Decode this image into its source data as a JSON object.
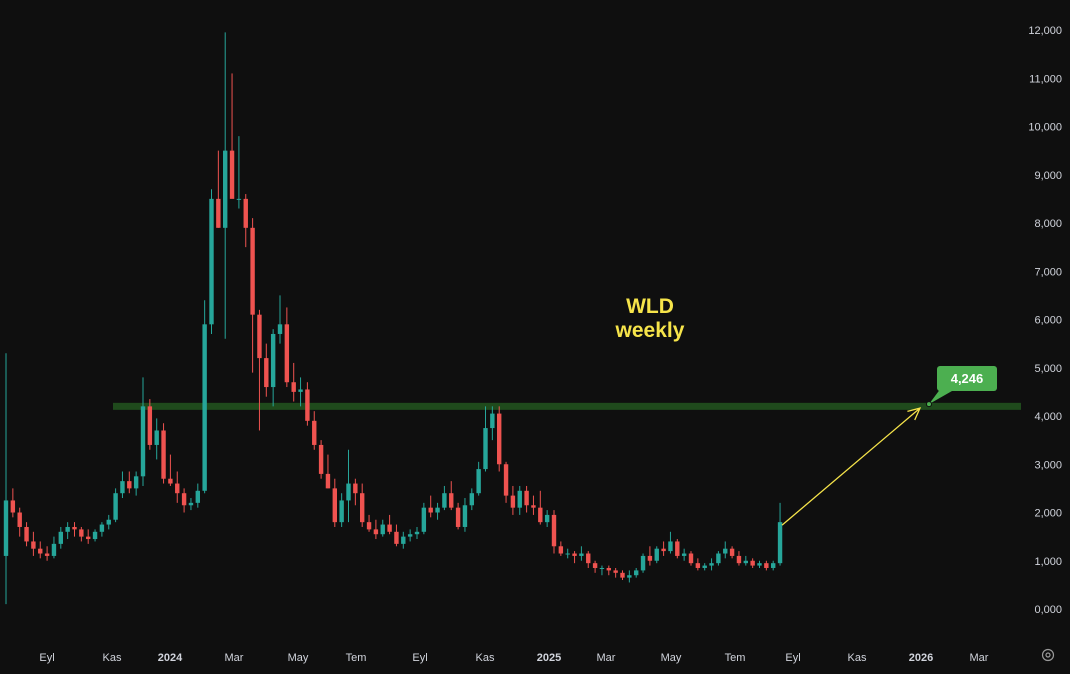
{
  "chart_data": {
    "type": "candlestick",
    "title": "WLD",
    "subtitle": "weekly",
    "ylim": [
      0,
      12000
    ],
    "y_ticks": [
      0,
      1000,
      2000,
      3000,
      4000,
      5000,
      6000,
      7000,
      8000,
      9000,
      10000,
      11000,
      12000
    ],
    "y_tick_labels": [
      "0,000",
      "1,000",
      "2,000",
      "3,000",
      "4,000",
      "5,000",
      "6,000",
      "7,000",
      "8,000",
      "9,000",
      "10,000",
      "11,000",
      "12,000"
    ],
    "x_tick_labels": [
      "Eyl",
      "Kas",
      "2024",
      "Mar",
      "May",
      "Tem",
      "Eyl",
      "Kas",
      "2025",
      "Mar",
      "May",
      "Tem",
      "Eyl",
      "Kas",
      "2026",
      "Mar"
    ],
    "bold_x_labels": [
      "2024",
      "2025",
      "2026"
    ],
    "candles": [
      [
        1100,
        5300,
        100,
        2250
      ],
      [
        2250,
        2500,
        1900,
        2000
      ],
      [
        2000,
        2100,
        1500,
        1700
      ],
      [
        1700,
        1800,
        1300,
        1400
      ],
      [
        1400,
        1600,
        1100,
        1250
      ],
      [
        1250,
        1400,
        1050,
        1150
      ],
      [
        1150,
        1300,
        1000,
        1100
      ],
      [
        1100,
        1500,
        1050,
        1350
      ],
      [
        1350,
        1700,
        1250,
        1600
      ],
      [
        1600,
        1800,
        1450,
        1700
      ],
      [
        1700,
        1800,
        1500,
        1650
      ],
      [
        1650,
        1700,
        1400,
        1500
      ],
      [
        1500,
        1650,
        1350,
        1450
      ],
      [
        1450,
        1650,
        1400,
        1600
      ],
      [
        1600,
        1800,
        1500,
        1750
      ],
      [
        1750,
        1950,
        1650,
        1850
      ],
      [
        1850,
        2500,
        1800,
        2400
      ],
      [
        2400,
        2850,
        2300,
        2650
      ],
      [
        2650,
        2850,
        2400,
        2500
      ],
      [
        2500,
        2850,
        2350,
        2750
      ],
      [
        2750,
        4800,
        2550,
        4200
      ],
      [
        4200,
        4350,
        3300,
        3400
      ],
      [
        3400,
        3950,
        3100,
        3700
      ],
      [
        3700,
        3850,
        2600,
        2700
      ],
      [
        2700,
        3200,
        2550,
        2600
      ],
      [
        2600,
        2850,
        2200,
        2400
      ],
      [
        2400,
        2500,
        2000,
        2150
      ],
      [
        2150,
        2300,
        2050,
        2200
      ],
      [
        2200,
        2600,
        2100,
        2450
      ],
      [
        2450,
        6400,
        2400,
        5900
      ],
      [
        5900,
        8700,
        5700,
        8500
      ],
      [
        8500,
        9500,
        7900,
        7900
      ],
      [
        7900,
        11950,
        5600,
        9500
      ],
      [
        9500,
        11100,
        8600,
        8500
      ],
      [
        8500,
        9800,
        8300,
        8500
      ],
      [
        8500,
        8600,
        7500,
        7900
      ],
      [
        7900,
        8100,
        4900,
        6100
      ],
      [
        6100,
        6200,
        3700,
        5200
      ],
      [
        5200,
        5500,
        4400,
        4600
      ],
      [
        4600,
        5800,
        4200,
        5700
      ],
      [
        5700,
        6500,
        5500,
        5900
      ],
      [
        5900,
        6250,
        4600,
        4700
      ],
      [
        4700,
        5100,
        4300,
        4500
      ],
      [
        4500,
        4800,
        4200,
        4550
      ],
      [
        4550,
        4700,
        3800,
        3900
      ],
      [
        3900,
        4100,
        3300,
        3400
      ],
      [
        3400,
        3500,
        2700,
        2800
      ],
      [
        2800,
        3200,
        2500,
        2500
      ],
      [
        2500,
        2700,
        1700,
        1800
      ],
      [
        1800,
        2400,
        1700,
        2250
      ],
      [
        2250,
        3300,
        1800,
        2600
      ],
      [
        2600,
        2700,
        2150,
        2400
      ],
      [
        2400,
        2600,
        1700,
        1800
      ],
      [
        1800,
        1950,
        1600,
        1650
      ],
      [
        1650,
        1850,
        1450,
        1550
      ],
      [
        1550,
        1850,
        1500,
        1750
      ],
      [
        1750,
        1950,
        1550,
        1600
      ],
      [
        1600,
        1750,
        1300,
        1350
      ],
      [
        1350,
        1600,
        1250,
        1500
      ],
      [
        1500,
        1650,
        1400,
        1550
      ],
      [
        1550,
        1700,
        1450,
        1600
      ],
      [
        1600,
        2200,
        1550,
        2100
      ],
      [
        2100,
        2350,
        1900,
        2000
      ],
      [
        2000,
        2200,
        1850,
        2100
      ],
      [
        2100,
        2550,
        2050,
        2400
      ],
      [
        2400,
        2650,
        2050,
        2100
      ],
      [
        2100,
        2200,
        1650,
        1700
      ],
      [
        1700,
        2300,
        1600,
        2150
      ],
      [
        2150,
        2500,
        2050,
        2400
      ],
      [
        2400,
        3050,
        2350,
        2900
      ],
      [
        2900,
        4200,
        2850,
        3750
      ],
      [
        3750,
        4200,
        3500,
        4050
      ],
      [
        4050,
        4200,
        2850,
        3000
      ],
      [
        3000,
        3050,
        2200,
        2350
      ],
      [
        2350,
        2550,
        1950,
        2100
      ],
      [
        2100,
        2550,
        1950,
        2450
      ],
      [
        2450,
        2550,
        2000,
        2150
      ],
      [
        2150,
        2350,
        1950,
        2100
      ],
      [
        2100,
        2450,
        1750,
        1800
      ],
      [
        1800,
        2050,
        1700,
        1950
      ],
      [
        1950,
        2050,
        1150,
        1300
      ],
      [
        1300,
        1400,
        1100,
        1150
      ],
      [
        1150,
        1250,
        1050,
        1150
      ],
      [
        1150,
        1200,
        950,
        1100
      ],
      [
        1100,
        1300,
        1000,
        1150
      ],
      [
        1150,
        1200,
        850,
        950
      ],
      [
        950,
        1000,
        750,
        850
      ],
      [
        850,
        900,
        700,
        850
      ],
      [
        850,
        900,
        700,
        800
      ],
      [
        800,
        850,
        650,
        750
      ],
      [
        750,
        800,
        600,
        650
      ],
      [
        650,
        800,
        550,
        700
      ],
      [
        700,
        850,
        650,
        800
      ],
      [
        800,
        1150,
        750,
        1100
      ],
      [
        1100,
        1300,
        900,
        1000
      ],
      [
        1000,
        1300,
        950,
        1250
      ],
      [
        1250,
        1400,
        1100,
        1200
      ],
      [
        1200,
        1600,
        1150,
        1400
      ],
      [
        1400,
        1450,
        1050,
        1100
      ],
      [
        1100,
        1250,
        1000,
        1150
      ],
      [
        1150,
        1200,
        900,
        950
      ],
      [
        950,
        1050,
        800,
        850
      ],
      [
        850,
        950,
        800,
        900
      ],
      [
        900,
        1050,
        800,
        950
      ],
      [
        950,
        1200,
        900,
        1150
      ],
      [
        1150,
        1400,
        1050,
        1250
      ],
      [
        1250,
        1300,
        1050,
        1100
      ],
      [
        1100,
        1200,
        900,
        950
      ],
      [
        950,
        1100,
        900,
        1000
      ],
      [
        1000,
        1050,
        850,
        900
      ],
      [
        900,
        1000,
        850,
        950
      ],
      [
        950,
        1000,
        800,
        850
      ],
      [
        850,
        1000,
        800,
        950
      ],
      [
        950,
        2200,
        900,
        1800
      ]
    ],
    "resistance_level": 4200,
    "target_label": "4,246",
    "target_value": 4246
  }
}
